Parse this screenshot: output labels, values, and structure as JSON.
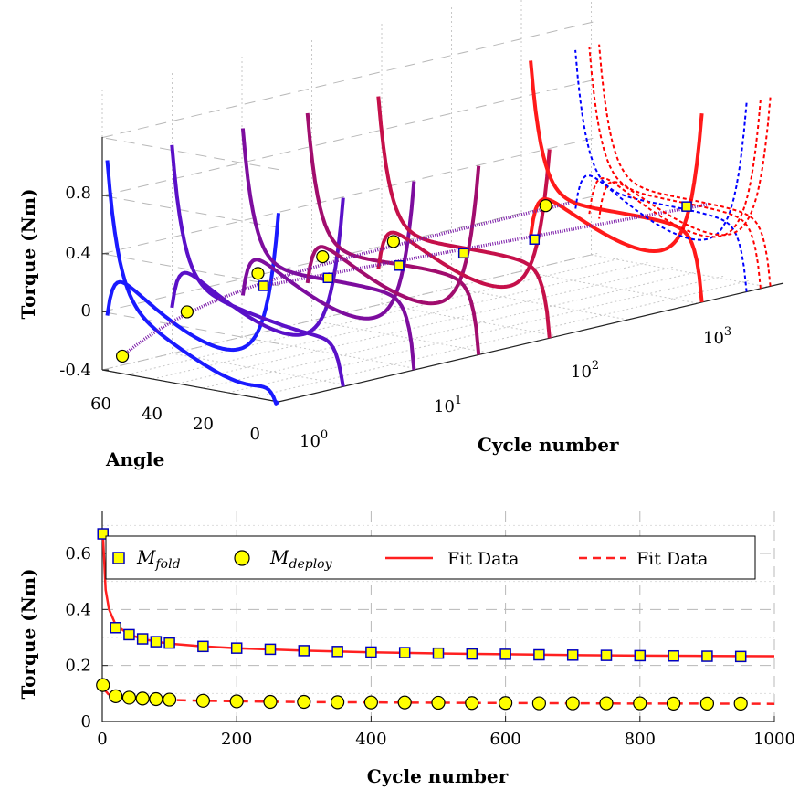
{
  "chart_data": [
    {
      "type": "line",
      "subtype": "3d-waterfall",
      "zlabel": "Torque (Nm)",
      "xlabel": "Angle",
      "ylabel": "Cycle number",
      "z_ticks": [
        "0.8",
        "0.4",
        "0",
        "-0.4"
      ],
      "angle_ticks": [
        "60",
        "40",
        "20",
        "0"
      ],
      "cycle_ticks": [
        {
          "base": "10",
          "exp": "0"
        },
        {
          "base": "10",
          "exp": "1"
        },
        {
          "base": "10",
          "exp": "2"
        },
        {
          "base": "10",
          "exp": "3"
        }
      ],
      "y_scale": "log",
      "grid": true,
      "series_colors": [
        "#1a1aff",
        "#5a10c8",
        "#7d0d9e",
        "#a10d6e",
        "#c5104a",
        "#ff1a1a"
      ],
      "fit_colors": [
        "#0000ff",
        "#ff0000"
      ],
      "series": [
        {
          "cycle": 1,
          "fold_peak": 0.38,
          "deploy_min": -0.28
        },
        {
          "cycle": 3,
          "fold_peak": 0.33,
          "deploy_min": -0.08
        },
        {
          "cycle": 10,
          "fold_peak": 0.3,
          "deploy_min": 0.07
        },
        {
          "cycle": 30,
          "fold_peak": 0.28,
          "deploy_min": 0.08
        },
        {
          "cycle": 100,
          "fold_peak": 0.26,
          "deploy_min": 0.07
        },
        {
          "cycle": 1000,
          "fold_peak": 0.24,
          "deploy_min": 0.07
        }
      ]
    },
    {
      "type": "scatter",
      "xlabel": "Cycle number",
      "ylabel": "Torque (Nm)",
      "xlim": [
        0,
        1000
      ],
      "ylim": [
        0,
        0.75
      ],
      "x_ticks": [
        "0",
        "200",
        "400",
        "600",
        "800",
        "1000"
      ],
      "y_ticks": [
        "0",
        "0.2",
        "0.4",
        "0.6"
      ],
      "grid": true,
      "legend_position": "top",
      "legend": [
        {
          "label": "M",
          "sub": "fold"
        },
        {
          "label": "M",
          "sub": "deploy"
        },
        {
          "label": "Fit Data"
        },
        {
          "label": "Fit Data"
        }
      ],
      "series": [
        {
          "name": "M_fold",
          "marker": "square",
          "fill": "#ffff00",
          "edge": "#0000c0",
          "x": [
            1,
            20,
            40,
            60,
            80,
            100,
            150,
            200,
            250,
            300,
            350,
            400,
            450,
            500,
            550,
            600,
            650,
            700,
            750,
            800,
            850,
            900,
            950
          ],
          "y": [
            0.67,
            0.335,
            0.31,
            0.295,
            0.285,
            0.28,
            0.268,
            0.262,
            0.258,
            0.253,
            0.25,
            0.248,
            0.246,
            0.244,
            0.241,
            0.24,
            0.238,
            0.237,
            0.236,
            0.235,
            0.234,
            0.233,
            0.232
          ]
        },
        {
          "name": "M_deploy",
          "marker": "circle",
          "fill": "#ffff00",
          "edge": "#000000",
          "x": [
            1,
            20,
            40,
            60,
            80,
            100,
            150,
            200,
            250,
            300,
            350,
            400,
            450,
            500,
            550,
            600,
            650,
            700,
            750,
            800,
            850,
            900,
            950
          ],
          "y": [
            0.13,
            0.09,
            0.085,
            0.082,
            0.08,
            0.078,
            0.074,
            0.072,
            0.07,
            0.07,
            0.069,
            0.068,
            0.068,
            0.067,
            0.066,
            0.066,
            0.065,
            0.065,
            0.065,
            0.065,
            0.064,
            0.064,
            0.064
          ]
        },
        {
          "name": "Fit Data (fold)",
          "style": "solid",
          "color": "#ff2020",
          "x": [
            1,
            5,
            10,
            20,
            40,
            60,
            80,
            100,
            150,
            200,
            300,
            400,
            500,
            600,
            700,
            800,
            900,
            1000
          ],
          "y": [
            0.67,
            0.47,
            0.4,
            0.345,
            0.31,
            0.295,
            0.285,
            0.278,
            0.268,
            0.262,
            0.253,
            0.247,
            0.243,
            0.24,
            0.237,
            0.235,
            0.234,
            0.233
          ]
        },
        {
          "name": "Fit Data (deploy)",
          "style": "dashed",
          "color": "#ff2020",
          "x": [
            1,
            10,
            20,
            40,
            60,
            80,
            100,
            150,
            200,
            300,
            400,
            500,
            600,
            700,
            800,
            900,
            1000
          ],
          "y": [
            0.12,
            0.095,
            0.088,
            0.083,
            0.08,
            0.078,
            0.077,
            0.074,
            0.072,
            0.069,
            0.068,
            0.067,
            0.066,
            0.065,
            0.064,
            0.064,
            0.063
          ]
        }
      ]
    }
  ]
}
